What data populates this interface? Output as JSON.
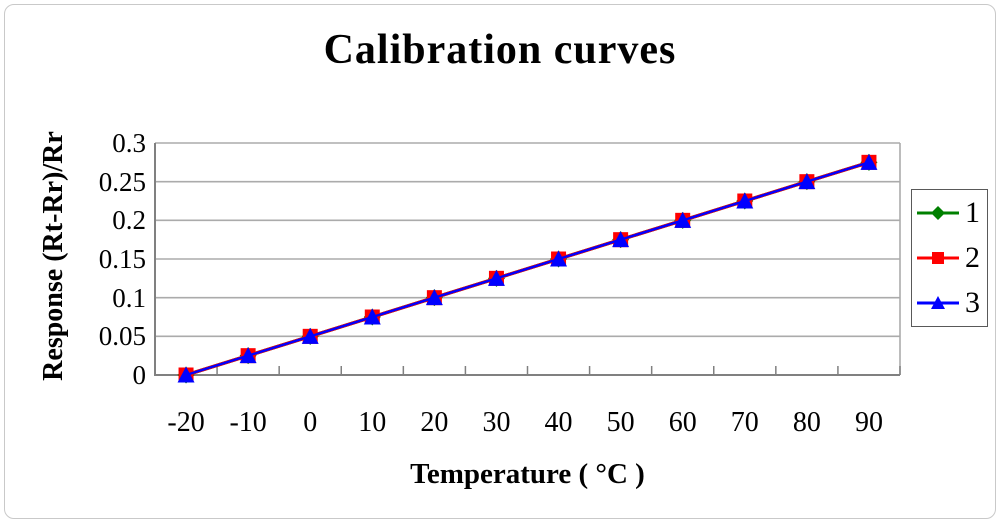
{
  "chart_data": {
    "type": "line",
    "title": "Calibration curves",
    "xlabel": "Temperature ( °C )",
    "ylabel": "Response (Rt-Rr)/Rr",
    "x_axis_type": "category",
    "x": [
      -20,
      -10,
      0,
      10,
      20,
      30,
      40,
      50,
      60,
      70,
      80,
      90
    ],
    "x_tick_labels": [
      "-20",
      "-10",
      "0",
      "10",
      "20",
      "30",
      "40",
      "50",
      "60",
      "70",
      "80",
      "90"
    ],
    "y_ticks": [
      0,
      0.05,
      0.1,
      0.15,
      0.2,
      0.25,
      0.3
    ],
    "y_tick_labels": [
      "0",
      "0.05",
      "0.1",
      "0.15",
      "0.2",
      "0.25",
      "0.3"
    ],
    "ylim": [
      0,
      0.3
    ],
    "grid": "horizontal",
    "grid_color": "#ababab",
    "axis_color": "#808080",
    "legend_position": "right",
    "series": [
      {
        "name": "1",
        "color": "#008000",
        "marker": "diamond",
        "values": [
          0,
          0.025,
          0.05,
          0.075,
          0.1,
          0.125,
          0.15,
          0.175,
          0.2,
          0.225,
          0.25,
          0.275
        ]
      },
      {
        "name": "2",
        "color": "#ff0000",
        "marker": "square",
        "values": [
          0,
          0.025,
          0.05,
          0.075,
          0.1,
          0.125,
          0.15,
          0.175,
          0.2,
          0.225,
          0.25,
          0.275
        ]
      },
      {
        "name": "3",
        "color": "#0000ff",
        "marker": "triangle",
        "values": [
          0,
          0.025,
          0.05,
          0.075,
          0.1,
          0.125,
          0.15,
          0.175,
          0.2,
          0.225,
          0.25,
          0.275
        ]
      }
    ]
  }
}
